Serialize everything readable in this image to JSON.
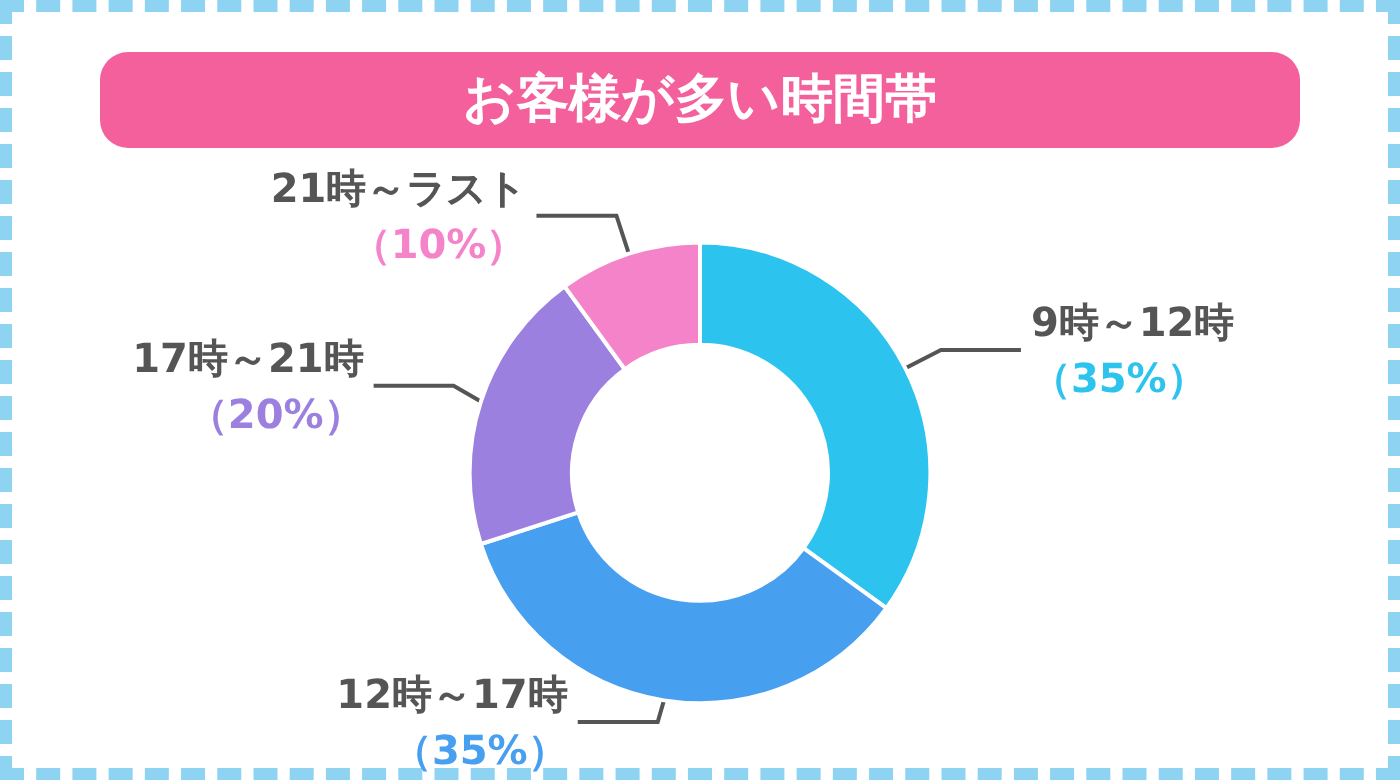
{
  "chart_data": {
    "type": "donut",
    "title": "お客様が多い時間帯",
    "categories": [
      "9時～12時",
      "12時～17時",
      "17時～21時",
      "21時～ラスト"
    ],
    "values": [
      35,
      35,
      20,
      10
    ],
    "value_labels": [
      "（35%）",
      "（35%）",
      "（20%）",
      "（10%）"
    ],
    "colors": [
      "#2cc4ee",
      "#479ff0",
      "#9c80e0",
      "#f583c9"
    ],
    "legend": false
  }
}
